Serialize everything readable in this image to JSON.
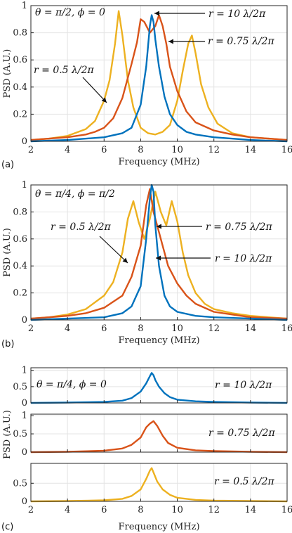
{
  "chart_data": [
    {
      "type": "line",
      "panel_label": "(a)",
      "title": "θ = π/2, ϕ = 0",
      "xlabel": "Frequency (MHz)",
      "ylabel": "PSD (A.U.)",
      "xlim": [
        2,
        16
      ],
      "ylim": [
        0,
        1
      ],
      "xticks": [
        "2",
        "4",
        "6",
        "8",
        "10",
        "12",
        "14",
        "16"
      ],
      "yticks": [
        "0",
        "0.2",
        "0.4",
        "0.6",
        "0.8",
        "1"
      ],
      "grid": true,
      "series": [
        {
          "name": "r = 0.5 λ/2π",
          "color": "#EDB120",
          "x": [
            2,
            3,
            4,
            5,
            5.5,
            6,
            6.3,
            6.6,
            6.8,
            7,
            7.3,
            7.6,
            8,
            8.4,
            8.8,
            9.2,
            9.6,
            10,
            10.3,
            10.6,
            10.8,
            11,
            11.3,
            11.7,
            12.2,
            13,
            14,
            15,
            16
          ],
          "y": [
            0.01,
            0.02,
            0.04,
            0.09,
            0.15,
            0.3,
            0.45,
            0.72,
            0.96,
            0.78,
            0.45,
            0.25,
            0.1,
            0.06,
            0.05,
            0.07,
            0.12,
            0.3,
            0.52,
            0.72,
            0.78,
            0.65,
            0.42,
            0.25,
            0.13,
            0.06,
            0.03,
            0.02,
            0.01
          ]
        },
        {
          "name": "r = 0.75 λ/2π",
          "color": "#D95319",
          "x": [
            2,
            3,
            4,
            5,
            5.5,
            6,
            6.5,
            7,
            7.5,
            7.8,
            8,
            8.2,
            8.5,
            8.8,
            9,
            9.2,
            9.4,
            9.6,
            10,
            10.5,
            11,
            12,
            13,
            14,
            15,
            16
          ],
          "y": [
            0.01,
            0.02,
            0.03,
            0.05,
            0.07,
            0.1,
            0.17,
            0.32,
            0.57,
            0.73,
            0.9,
            0.88,
            0.8,
            0.85,
            0.93,
            0.85,
            0.72,
            0.55,
            0.37,
            0.22,
            0.14,
            0.08,
            0.05,
            0.03,
            0.02,
            0.01
          ]
        },
        {
          "name": "r = 10 λ/2π",
          "color": "#0072BD",
          "x": [
            2,
            4,
            6,
            7,
            7.5,
            8,
            8.3,
            8.5,
            8.6,
            8.7,
            8.8,
            9,
            9.3,
            9.6,
            10,
            10.5,
            11,
            12,
            14,
            16
          ],
          "y": [
            0,
            0.01,
            0.03,
            0.06,
            0.1,
            0.27,
            0.55,
            0.85,
            0.93,
            0.88,
            0.75,
            0.55,
            0.33,
            0.2,
            0.12,
            0.07,
            0.05,
            0.03,
            0.01,
            0
          ]
        }
      ],
      "annotations": [
        "r = 10 λ/2π",
        "r = 0.75 λ/2π",
        "r = 0.5 λ/2π"
      ]
    },
    {
      "type": "line",
      "panel_label": "(b)",
      "title": "θ = π/4, ϕ = π/2",
      "xlabel": "Frequency (MHz)",
      "ylabel": "PSD (A.U.)",
      "xlim": [
        2,
        16
      ],
      "ylim": [
        0,
        1
      ],
      "xticks": [
        "2",
        "4",
        "6",
        "8",
        "10",
        "12",
        "14",
        "16"
      ],
      "yticks": [
        "0",
        "0.2",
        "0.4",
        "0.6",
        "0.8",
        "1"
      ],
      "grid": true,
      "series": [
        {
          "name": "r = 0.5 λ/2π",
          "color": "#EDB120",
          "x": [
            2,
            3,
            4,
            5,
            6,
            6.5,
            7,
            7.3,
            7.6,
            7.9,
            8.2,
            8.5,
            8.8,
            9.1,
            9.4,
            9.7,
            10,
            10.3,
            10.6,
            11,
            11.5,
            12,
            13,
            14,
            15,
            16
          ],
          "y": [
            0.01,
            0.02,
            0.04,
            0.08,
            0.18,
            0.28,
            0.5,
            0.75,
            0.88,
            0.72,
            0.6,
            0.75,
            0.95,
            0.8,
            0.7,
            0.88,
            0.73,
            0.5,
            0.33,
            0.2,
            0.12,
            0.08,
            0.05,
            0.03,
            0.02,
            0.01
          ]
        },
        {
          "name": "r = 0.75 λ/2π",
          "color": "#D95319",
          "x": [
            2,
            3,
            4,
            5,
            6,
            7,
            7.5,
            8,
            8.3,
            8.5,
            8.7,
            8.9,
            9.2,
            9.5,
            10,
            10.5,
            11,
            12,
            13,
            14,
            16
          ],
          "y": [
            0.01,
            0.02,
            0.03,
            0.05,
            0.09,
            0.18,
            0.32,
            0.55,
            0.85,
            0.97,
            0.8,
            0.7,
            0.55,
            0.4,
            0.27,
            0.18,
            0.12,
            0.06,
            0.04,
            0.02,
            0.01
          ]
        },
        {
          "name": "r = 10 λ/2π",
          "color": "#0072BD",
          "x": [
            2,
            4,
            6,
            7,
            7.5,
            8,
            8.3,
            8.5,
            8.6,
            8.7,
            8.8,
            9,
            9.3,
            9.6,
            10,
            11,
            12,
            14,
            16
          ],
          "y": [
            0,
            0.01,
            0.02,
            0.05,
            0.1,
            0.25,
            0.6,
            0.9,
            1.0,
            0.95,
            0.7,
            0.4,
            0.18,
            0.1,
            0.06,
            0.03,
            0.02,
            0.01,
            0
          ]
        }
      ],
      "annotations": [
        "r = 0.5 λ/2π",
        "r = 0.75 λ/2π",
        "r = 10 λ/2π"
      ]
    },
    {
      "type": "line",
      "panel_label": "(c)",
      "title": "θ = π/4, ϕ = 0",
      "xlabel": "Frequency (MHz)",
      "ylabel": "PSD (A.U.)",
      "xlim": [
        2,
        16
      ],
      "xticks": [
        "2",
        "4",
        "6",
        "8",
        "10",
        "12",
        "14",
        "16"
      ],
      "subplots": [
        {
          "label": "r = 10 λ/2π",
          "color": "#0072BD",
          "ylim": [
            0,
            1
          ],
          "yticks": [
            "0",
            "0.5",
            "1"
          ],
          "x": [
            2,
            4,
            6,
            7,
            7.5,
            8,
            8.3,
            8.5,
            8.6,
            8.7,
            8.8,
            9,
            9.3,
            9.6,
            10,
            11,
            12,
            14,
            16
          ],
          "y": [
            0,
            0.01,
            0.03,
            0.07,
            0.15,
            0.35,
            0.6,
            0.82,
            0.92,
            0.85,
            0.7,
            0.5,
            0.3,
            0.18,
            0.1,
            0.05,
            0.03,
            0.01,
            0
          ]
        },
        {
          "label": "r = 0.75 λ/2π",
          "color": "#D95319",
          "ylim": [
            0,
            1
          ],
          "yticks": [
            "0",
            "0.5",
            "1"
          ],
          "x": [
            2,
            4,
            6,
            7,
            7.5,
            8,
            8.3,
            8.5,
            8.7,
            8.9,
            9.2,
            9.5,
            10,
            11,
            12,
            14,
            16
          ],
          "y": [
            0,
            0.01,
            0.04,
            0.1,
            0.2,
            0.4,
            0.68,
            0.78,
            0.85,
            0.72,
            0.45,
            0.25,
            0.12,
            0.05,
            0.03,
            0.01,
            0
          ]
        },
        {
          "label": "r = 0.5 λ/2π",
          "color": "#EDB120",
          "ylim": [
            0,
            1
          ],
          "yticks": [
            "0",
            "0.5"
          ],
          "x": [
            2,
            4,
            6,
            7,
            7.5,
            8,
            8.3,
            8.5,
            8.6,
            8.7,
            8.9,
            9.2,
            9.6,
            10,
            11,
            12,
            14,
            16
          ],
          "y": [
            0,
            0.01,
            0.03,
            0.07,
            0.15,
            0.33,
            0.62,
            0.85,
            0.92,
            0.8,
            0.55,
            0.33,
            0.18,
            0.1,
            0.04,
            0.02,
            0.01,
            0
          ]
        }
      ]
    }
  ]
}
